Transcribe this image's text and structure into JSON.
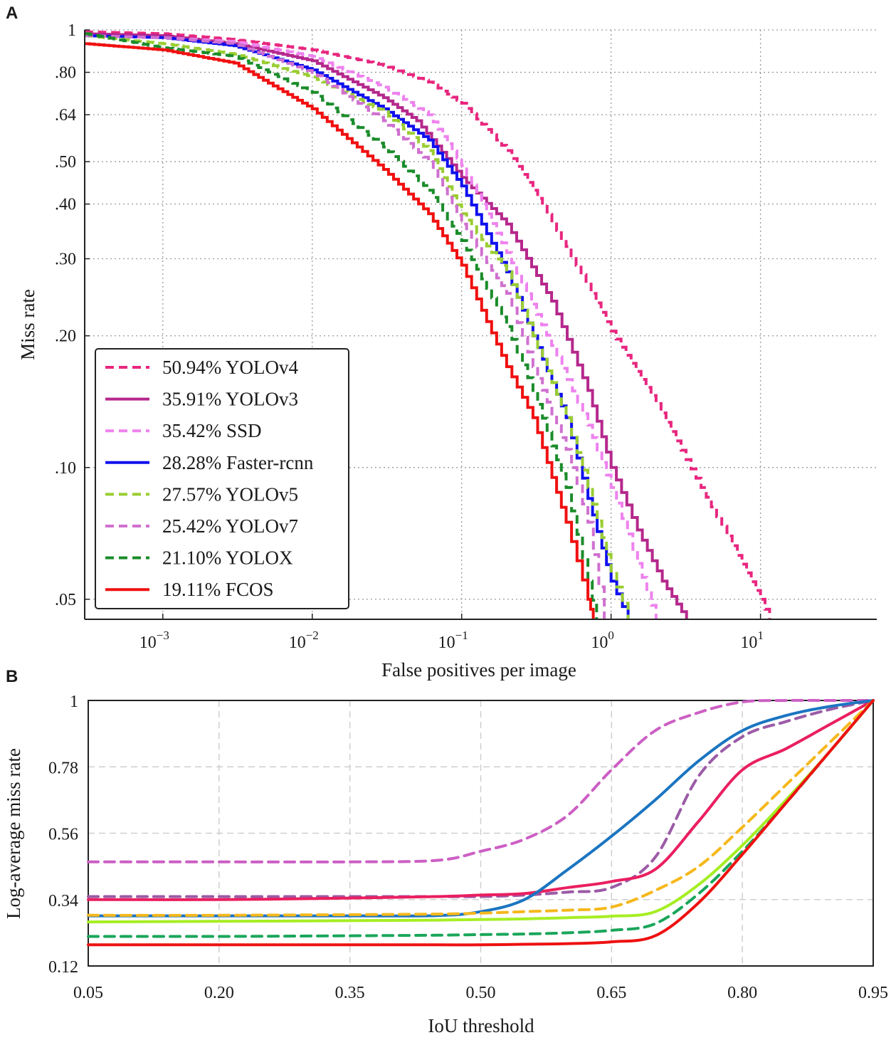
{
  "figure": {
    "panel_a_letter": "A",
    "panel_b_letter": "B"
  },
  "chart_data": [
    {
      "type": "line",
      "panel": "A",
      "title": "",
      "xlabel": "False positives per image",
      "ylabel": "Miss rate",
      "xscale": "log",
      "yscale": "log",
      "xlim": [
        0.0003,
        60
      ],
      "ylim": [
        0.045,
        1.0
      ],
      "grid": true,
      "legend_position": "lower-left",
      "x_tick_values": [
        0.001,
        0.01,
        0.1,
        1,
        10
      ],
      "x_tick_bases": [
        "10",
        "10",
        "10",
        "10",
        "10"
      ],
      "x_tick_exponents": [
        "−3",
        "−2",
        "−1",
        "0",
        "1"
      ],
      "y_tick_values": [
        1,
        0.8,
        0.64,
        0.5,
        0.4,
        0.3,
        0.2,
        0.1,
        0.05
      ],
      "y_tick_labels": [
        "1",
        ".80",
        ".64",
        ".50",
        ".40",
        ".30",
        ".20",
        ".10",
        ".05"
      ],
      "series": [
        {
          "name": "YOLOv4",
          "legend": "50.94% YOLOv4",
          "color": "#e8267f",
          "dash": true,
          "points": [
            [
              0.0003,
              0.99
            ],
            [
              0.001,
              0.98
            ],
            [
              0.003,
              0.95
            ],
            [
              0.01,
              0.9
            ],
            [
              0.03,
              0.83
            ],
            [
              0.06,
              0.76
            ],
            [
              0.1,
              0.68
            ],
            [
              0.2,
              0.53
            ],
            [
              0.3,
              0.43
            ],
            [
              0.5,
              0.32
            ],
            [
              1.0,
              0.205
            ],
            [
              2.0,
              0.14
            ],
            [
              4.0,
              0.09
            ],
            [
              7.0,
              0.063
            ],
            [
              10.0,
              0.05
            ],
            [
              11.5,
              0.045
            ]
          ]
        },
        {
          "name": "YOLOv3",
          "legend": "35.91% YOLOv3",
          "color": "#b5288c",
          "dash": false,
          "points": [
            [
              0.0003,
              0.98
            ],
            [
              0.001,
              0.97
            ],
            [
              0.003,
              0.93
            ],
            [
              0.01,
              0.85
            ],
            [
              0.03,
              0.7
            ],
            [
              0.05,
              0.62
            ],
            [
              0.1,
              0.46
            ],
            [
              0.2,
              0.36
            ],
            [
              0.4,
              0.24
            ],
            [
              0.7,
              0.15
            ],
            [
              1.0,
              0.1
            ],
            [
              1.5,
              0.072
            ],
            [
              2.2,
              0.055
            ],
            [
              3.2,
              0.045
            ]
          ]
        },
        {
          "name": "SSD",
          "legend": "35.42% SSD",
          "color": "#ee82ee",
          "dash": true,
          "points": [
            [
              0.0003,
              0.97
            ],
            [
              0.001,
              0.96
            ],
            [
              0.003,
              0.94
            ],
            [
              0.01,
              0.87
            ],
            [
              0.03,
              0.74
            ],
            [
              0.06,
              0.64
            ],
            [
              0.1,
              0.49
            ],
            [
              0.2,
              0.31
            ],
            [
              0.4,
              0.19
            ],
            [
              0.7,
              0.125
            ],
            [
              1.0,
              0.09
            ],
            [
              1.4,
              0.065
            ],
            [
              2.0,
              0.045
            ]
          ]
        },
        {
          "name": "Faster-rcnn",
          "legend": "28.28% Faster-rcnn",
          "color": "#1010ee",
          "dash": false,
          "points": [
            [
              0.0003,
              0.97
            ],
            [
              0.001,
              0.96
            ],
            [
              0.003,
              0.92
            ],
            [
              0.01,
              0.81
            ],
            [
              0.03,
              0.66
            ],
            [
              0.06,
              0.56
            ],
            [
              0.1,
              0.44
            ],
            [
              0.2,
              0.28
            ],
            [
              0.3,
              0.2
            ],
            [
              0.5,
              0.13
            ],
            [
              0.7,
              0.085
            ],
            [
              1.0,
              0.055
            ],
            [
              1.3,
              0.045
            ]
          ]
        },
        {
          "name": "YOLOv5",
          "legend": "27.57% YOLOv5",
          "color": "#9acd32",
          "dash": true,
          "points": [
            [
              0.0003,
              0.97
            ],
            [
              0.001,
              0.93
            ],
            [
              0.003,
              0.88
            ],
            [
              0.01,
              0.78
            ],
            [
              0.03,
              0.65
            ],
            [
              0.06,
              0.53
            ],
            [
              0.1,
              0.38
            ],
            [
              0.2,
              0.28
            ],
            [
              0.3,
              0.2
            ],
            [
              0.5,
              0.13
            ],
            [
              0.7,
              0.09
            ],
            [
              1.0,
              0.058
            ],
            [
              1.3,
              0.045
            ]
          ]
        },
        {
          "name": "YOLOv7",
          "legend": "25.42% YOLOv7",
          "color": "#d070d0",
          "dash": true,
          "points": [
            [
              0.0003,
              0.97
            ],
            [
              0.001,
              0.96
            ],
            [
              0.003,
              0.93
            ],
            [
              0.01,
              0.8
            ],
            [
              0.03,
              0.62
            ],
            [
              0.06,
              0.5
            ],
            [
              0.1,
              0.36
            ],
            [
              0.2,
              0.25
            ],
            [
              0.3,
              0.17
            ],
            [
              0.5,
              0.11
            ],
            [
              0.7,
              0.075
            ],
            [
              0.9,
              0.045
            ]
          ]
        },
        {
          "name": "YOLOX",
          "legend": "21.10% YOLOX",
          "color": "#1a8c2a",
          "dash": true,
          "points": [
            [
              0.0003,
              0.98
            ],
            [
              0.001,
              0.91
            ],
            [
              0.003,
              0.87
            ],
            [
              0.01,
              0.72
            ],
            [
              0.03,
              0.54
            ],
            [
              0.06,
              0.43
            ],
            [
              0.1,
              0.33
            ],
            [
              0.2,
              0.21
            ],
            [
              0.3,
              0.15
            ],
            [
              0.5,
              0.09
            ],
            [
              0.7,
              0.055
            ],
            [
              0.8,
              0.045
            ]
          ]
        },
        {
          "name": "FCOS",
          "legend": "19.11% FCOS",
          "color": "#f01010",
          "dash": false,
          "points": [
            [
              0.0003,
              0.93
            ],
            [
              0.001,
              0.9
            ],
            [
              0.003,
              0.84
            ],
            [
              0.01,
              0.66
            ],
            [
              0.02,
              0.54
            ],
            [
              0.03,
              0.48
            ],
            [
              0.06,
              0.38
            ],
            [
              0.1,
              0.29
            ],
            [
              0.2,
              0.17
            ],
            [
              0.3,
              0.13
            ],
            [
              0.5,
              0.075
            ],
            [
              0.7,
              0.05
            ],
            [
              0.76,
              0.045
            ]
          ]
        }
      ]
    },
    {
      "type": "line",
      "panel": "B",
      "title": "",
      "xlabel": "IoU threshold",
      "ylabel": "Log-average miss rate",
      "xlim": [
        0.05,
        0.95
      ],
      "ylim": [
        0.12,
        1.0
      ],
      "grid": true,
      "x_tick_labels": [
        "0.05",
        "0.20",
        "0.35",
        "0.50",
        "0.65",
        "0.80",
        "0.95"
      ],
      "y_tick_labels": [
        "1",
        "0.78",
        "0.56",
        "0.34",
        "0.12"
      ],
      "x": [
        0.05,
        0.2,
        0.35,
        0.45,
        0.5,
        0.55,
        0.6,
        0.65,
        0.7,
        0.75,
        0.8,
        0.85,
        0.9,
        0.95
      ],
      "series": [
        {
          "name": "dashed-orchid",
          "color": "#cc5fc4",
          "dash": true,
          "values": [
            0.465,
            0.465,
            0.465,
            0.47,
            0.5,
            0.54,
            0.62,
            0.77,
            0.9,
            0.96,
            0.995,
            1.0,
            1.0,
            1.0
          ]
        },
        {
          "name": "dashed-purple",
          "color": "#9b5ba6",
          "dash": true,
          "values": [
            0.35,
            0.35,
            0.35,
            0.35,
            0.35,
            0.355,
            0.365,
            0.38,
            0.48,
            0.75,
            0.88,
            0.93,
            0.97,
            1.0
          ]
        },
        {
          "name": "solid-crimson",
          "color": "#ea1f60",
          "dash": false,
          "values": [
            0.34,
            0.34,
            0.345,
            0.35,
            0.355,
            0.36,
            0.38,
            0.4,
            0.44,
            0.6,
            0.77,
            0.84,
            0.92,
            1.0
          ]
        },
        {
          "name": "solid-blue",
          "color": "#1b75c1",
          "dash": false,
          "values": [
            0.286,
            0.286,
            0.286,
            0.287,
            0.3,
            0.34,
            0.44,
            0.55,
            0.67,
            0.8,
            0.9,
            0.95,
            0.98,
            1.0
          ]
        },
        {
          "name": "dashed-orange",
          "color": "#f5b81c",
          "dash": true,
          "values": [
            0.288,
            0.288,
            0.29,
            0.292,
            0.295,
            0.3,
            0.305,
            0.315,
            0.37,
            0.45,
            0.58,
            0.72,
            0.86,
            1.0
          ]
        },
        {
          "name": "solid-lime",
          "color": "#a6ee24",
          "dash": false,
          "values": [
            0.266,
            0.268,
            0.27,
            0.272,
            0.274,
            0.276,
            0.28,
            0.285,
            0.3,
            0.39,
            0.52,
            0.67,
            0.83,
            1.0
          ]
        },
        {
          "name": "dashed-green",
          "color": "#1aa65a",
          "dash": true,
          "values": [
            0.218,
            0.218,
            0.22,
            0.222,
            0.224,
            0.226,
            0.23,
            0.238,
            0.26,
            0.36,
            0.5,
            0.66,
            0.83,
            1.0
          ]
        },
        {
          "name": "solid-red",
          "color": "#ee1111",
          "dash": false,
          "values": [
            0.19,
            0.19,
            0.19,
            0.19,
            0.19,
            0.192,
            0.194,
            0.2,
            0.22,
            0.33,
            0.49,
            0.66,
            0.83,
            1.0
          ]
        }
      ]
    }
  ]
}
